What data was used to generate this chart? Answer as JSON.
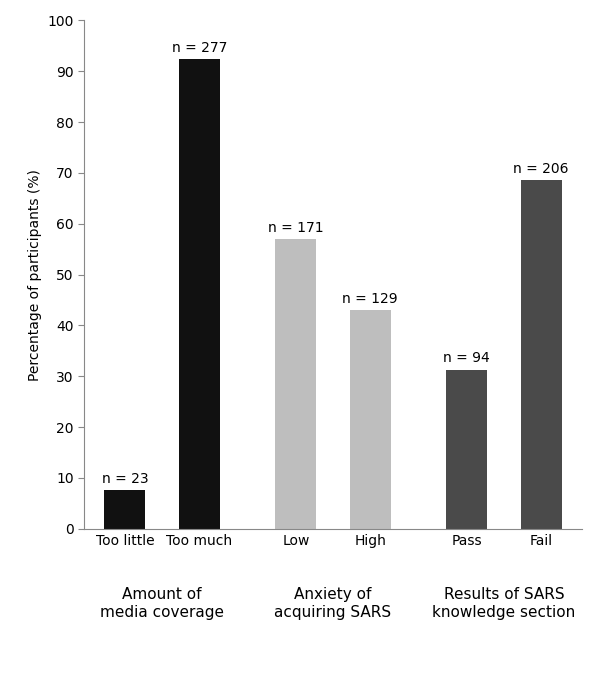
{
  "categories": [
    "Too little",
    "Too much",
    "Low",
    "High",
    "Pass",
    "Fail"
  ],
  "values": [
    7.67,
    92.33,
    57.0,
    43.0,
    31.33,
    68.67
  ],
  "n_labels": [
    "n = 23",
    "n = 277",
    "n = 171",
    "n = 129",
    "n = 94",
    "n = 206"
  ],
  "bar_colors": [
    "#111111",
    "#111111",
    "#bebebe",
    "#bebebe",
    "#4a4a4a",
    "#4a4a4a"
  ],
  "group_labels": [
    "Amount of\nmedia coverage",
    "Anxiety of\nacquiring SARS",
    "Results of SARS\nknowledge section"
  ],
  "ylabel": "Percentage of participants (%)",
  "ylim": [
    0,
    100
  ],
  "yticks": [
    0,
    10,
    20,
    30,
    40,
    50,
    60,
    70,
    80,
    90,
    100
  ],
  "bar_width": 0.55,
  "figsize": [
    6.0,
    6.78
  ],
  "dpi": 100,
  "label_fontsize": 10,
  "tick_fontsize": 10,
  "group_label_fontsize": 11
}
